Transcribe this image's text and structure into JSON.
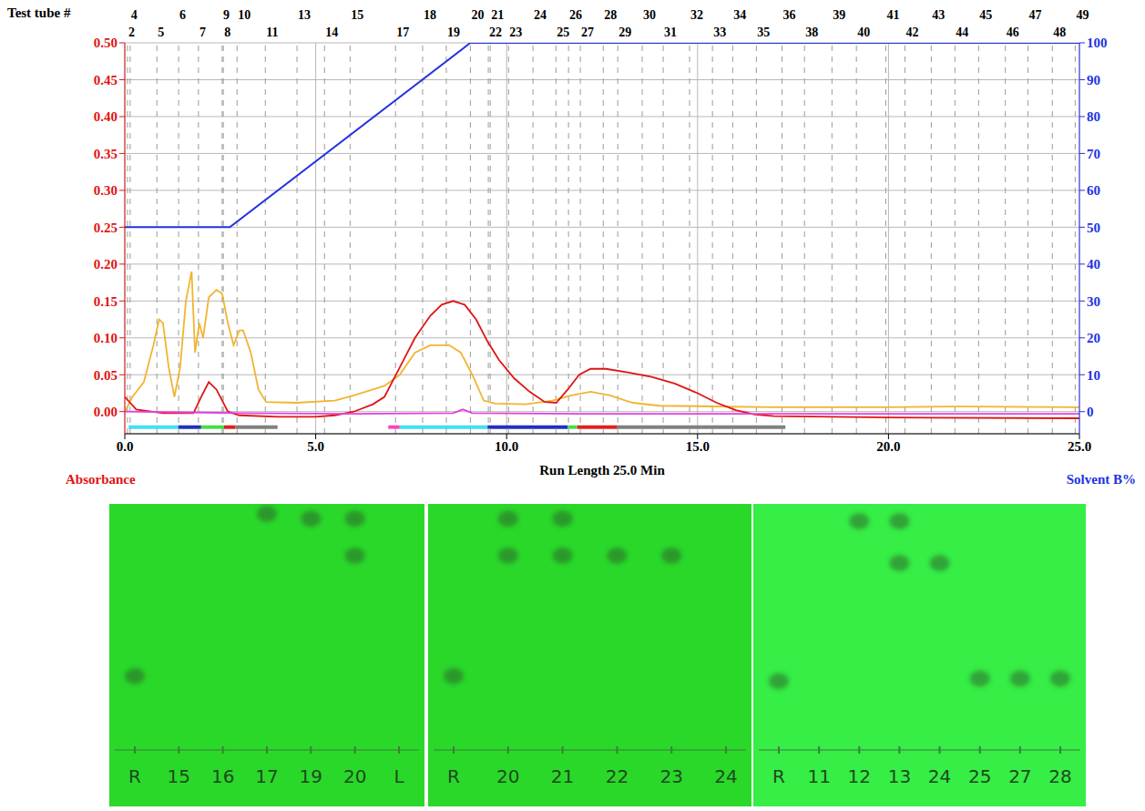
{
  "chart_data": {
    "type": "line",
    "x_label": "Run Length 25.0 Min",
    "y_label": "Absorbance",
    "y2_label": "Solvent B%",
    "xlim": [
      0,
      25
    ],
    "xticks": [
      {
        "value": 0,
        "label": "0.0"
      },
      {
        "value": 5,
        "label": "5.0"
      },
      {
        "value": 10,
        "label": "10.0"
      },
      {
        "value": 15,
        "label": "15.0"
      },
      {
        "value": 20,
        "label": "20.0"
      },
      {
        "value": 25,
        "label": "25.0"
      }
    ],
    "ylim": [
      -0.03,
      0.5
    ],
    "yticks": [
      {
        "value": 0,
        "label": "0.00"
      },
      {
        "value": 0.05,
        "label": "0.05"
      },
      {
        "value": 0.1,
        "label": "0.10"
      },
      {
        "value": 0.15,
        "label": "0.15"
      },
      {
        "value": 0.2,
        "label": "0.20"
      },
      {
        "value": 0.25,
        "label": "0.25"
      },
      {
        "value": 0.3,
        "label": "0.30"
      },
      {
        "value": 0.35,
        "label": "0.35"
      },
      {
        "value": 0.4,
        "label": "0.40"
      },
      {
        "value": 0.45,
        "label": "0.45"
      },
      {
        "value": 0.5,
        "label": "0.50"
      }
    ],
    "y2lim": [
      -6,
      100
    ],
    "y2ticks": [
      0,
      10,
      20,
      30,
      40,
      50,
      60,
      70,
      80,
      90,
      100
    ],
    "grid": true,
    "series": [
      {
        "color": "#f2b430",
        "x": [
          0,
          0.2,
          0.5,
          0.75,
          0.9,
          1.0,
          1.15,
          1.3,
          1.45,
          1.6,
          1.75,
          1.84,
          1.95,
          2.05,
          2.2,
          2.4,
          2.55,
          2.7,
          2.85,
          3.0,
          3.1,
          3.3,
          3.5,
          3.7,
          4.5,
          5.5,
          6.0,
          6.5,
          6.8,
          7.2,
          7.6,
          8.0,
          8.5,
          8.8,
          9.1,
          9.4,
          9.7,
          10.5,
          11.2,
          11.7,
          12.2,
          12.7,
          13.3,
          14,
          17,
          20,
          22,
          25
        ],
        "values": [
          0.0,
          0.02,
          0.04,
          0.09,
          0.125,
          0.12,
          0.06,
          0.02,
          0.06,
          0.15,
          0.19,
          0.08,
          0.12,
          0.1,
          0.155,
          0.165,
          0.16,
          0.12,
          0.09,
          0.11,
          0.11,
          0.08,
          0.03,
          0.013,
          0.012,
          0.015,
          0.022,
          0.03,
          0.035,
          0.05,
          0.08,
          0.09,
          0.09,
          0.08,
          0.05,
          0.015,
          0.011,
          0.01,
          0.015,
          0.022,
          0.027,
          0.022,
          0.012,
          0.008,
          0.006,
          0.006,
          0.007,
          0.006
        ]
      },
      {
        "color": "#e01414",
        "x": [
          0,
          0.3,
          1.0,
          1.8,
          2.0,
          2.2,
          2.4,
          2.7,
          3.0,
          4,
          5,
          5.5,
          6.0,
          6.5,
          6.8,
          7.0,
          7.3,
          7.6,
          8.0,
          8.3,
          8.6,
          8.9,
          9.2,
          9.5,
          9.8,
          10.2,
          10.6,
          11.0,
          11.3,
          11.6,
          11.9,
          12.2,
          12.6,
          13.2,
          13.8,
          14.4,
          15.0,
          15.5,
          16.0,
          16.5,
          17.0,
          20,
          25
        ],
        "values": [
          0.02,
          0.003,
          -0.002,
          -0.002,
          0.02,
          0.04,
          0.03,
          0.0,
          -0.005,
          -0.007,
          -0.007,
          -0.005,
          0.0,
          0.01,
          0.02,
          0.04,
          0.07,
          0.1,
          0.13,
          0.145,
          0.15,
          0.145,
          0.125,
          0.095,
          0.07,
          0.045,
          0.027,
          0.013,
          0.012,
          0.03,
          0.05,
          0.058,
          0.058,
          0.053,
          0.047,
          0.038,
          0.025,
          0.012,
          0.002,
          -0.004,
          -0.006,
          -0.008,
          -0.009
        ]
      },
      {
        "color": "#e040e0",
        "x": [
          0,
          3,
          6,
          8.6,
          8.85,
          9.1,
          12,
          25
        ],
        "values": [
          0.0,
          -0.002,
          -0.003,
          -0.002,
          0.003,
          -0.002,
          -0.003,
          -0.003
        ]
      },
      {
        "color": "#2233e0",
        "axis": "y2",
        "x": [
          0,
          2.75,
          9.05,
          25
        ],
        "values": [
          50,
          50,
          100,
          100
        ]
      }
    ],
    "test_tubes": {
      "title": "Test tube #",
      "ticks": [
        {
          "value": 0.07,
          "label": "2"
        },
        {
          "value": 0.14,
          "label": "4"
        },
        {
          "value": 0.84,
          "label": "5"
        },
        {
          "value": 1.41,
          "label": "6"
        },
        {
          "value": 1.93,
          "label": "7"
        },
        {
          "value": 2.55,
          "label": "9"
        },
        {
          "value": 2.58,
          "label": "8"
        },
        {
          "value": 2.94,
          "label": "10"
        },
        {
          "value": 3.68,
          "label": "11"
        },
        {
          "value": 4.51,
          "label": "13"
        },
        {
          "value": 5.23,
          "label": "14"
        },
        {
          "value": 5.9,
          "label": "15"
        },
        {
          "value": 7.09,
          "label": "17"
        },
        {
          "value": 7.8,
          "label": "18"
        },
        {
          "value": 8.42,
          "label": "19"
        },
        {
          "value": 9.05,
          "label": "20"
        },
        {
          "value": 9.52,
          "label": "22"
        },
        {
          "value": 9.57,
          "label": "21"
        },
        {
          "value": 10.05,
          "label": "23"
        },
        {
          "value": 10.69,
          "label": "24"
        },
        {
          "value": 11.29,
          "label": "25"
        },
        {
          "value": 11.62,
          "label": "26"
        },
        {
          "value": 11.93,
          "label": "27"
        },
        {
          "value": 12.53,
          "label": "28"
        },
        {
          "value": 12.91,
          "label": "29"
        },
        {
          "value": 13.55,
          "label": "30"
        },
        {
          "value": 14.1,
          "label": "31"
        },
        {
          "value": 14.79,
          "label": "32"
        },
        {
          "value": 15.39,
          "label": "33"
        },
        {
          "value": 15.92,
          "label": "34"
        },
        {
          "value": 16.54,
          "label": "35"
        },
        {
          "value": 17.21,
          "label": "36"
        },
        {
          "value": 17.8,
          "label": "38"
        },
        {
          "value": 18.52,
          "label": "39"
        },
        {
          "value": 19.16,
          "label": "40"
        },
        {
          "value": 19.93,
          "label": "41"
        },
        {
          "value": 20.43,
          "label": "42"
        },
        {
          "value": 21.12,
          "label": "43"
        },
        {
          "value": 21.74,
          "label": "44"
        },
        {
          "value": 22.36,
          "label": "45"
        },
        {
          "value": 23.06,
          "label": "46"
        },
        {
          "value": 23.65,
          "label": "47"
        },
        {
          "value": 24.29,
          "label": "48"
        },
        {
          "value": 24.89,
          "label": "49"
        }
      ]
    },
    "fraction_bars": [
      {
        "start": 0.1,
        "end": 1.4,
        "color": "#40e0f0"
      },
      {
        "start": 1.4,
        "end": 2.0,
        "color": "#2030c0"
      },
      {
        "start": 2.0,
        "end": 2.6,
        "color": "#40e040"
      },
      {
        "start": 2.6,
        "end": 2.9,
        "color": "#e02020"
      },
      {
        "start": 2.9,
        "end": 4.0,
        "color": "#808080"
      },
      {
        "start": 6.9,
        "end": 7.2,
        "color": "#ff40c0"
      },
      {
        "start": 7.2,
        "end": 9.5,
        "color": "#40e0f0"
      },
      {
        "start": 9.5,
        "end": 11.6,
        "color": "#2030c0"
      },
      {
        "start": 11.6,
        "end": 11.85,
        "color": "#40e040"
      },
      {
        "start": 11.85,
        "end": 12.9,
        "color": "#e02020"
      },
      {
        "start": 12.9,
        "end": 17.3,
        "color": "#808080"
      }
    ]
  },
  "plates": [
    {
      "lanes": [
        {
          "label": "R",
          "spots": [
            0.3
          ]
        },
        {
          "label": "15",
          "spots": []
        },
        {
          "label": "16",
          "spots": []
        },
        {
          "label": "17",
          "spots": [
            0.96
          ]
        },
        {
          "label": "19",
          "spots": [
            0.94
          ]
        },
        {
          "label": "20",
          "spots": [
            0.94,
            0.79
          ]
        },
        {
          "label": "L",
          "spots": []
        }
      ]
    },
    {
      "lanes": [
        {
          "label": "R",
          "spots": [
            0.3
          ]
        },
        {
          "label": "20",
          "spots": [
            0.94,
            0.79
          ]
        },
        {
          "label": "21",
          "spots": [
            0.94,
            0.79
          ]
        },
        {
          "label": "22",
          "spots": [
            0.79
          ]
        },
        {
          "label": "23",
          "spots": [
            0.79
          ]
        },
        {
          "label": "24",
          "spots": []
        }
      ]
    },
    {
      "lanes": [
        {
          "label": "R",
          "spots": [
            0.28
          ]
        },
        {
          "label": "11",
          "spots": []
        },
        {
          "label": "12",
          "spots": [
            0.93
          ]
        },
        {
          "label": "13",
          "spots": [
            0.93,
            0.76
          ]
        },
        {
          "label": "24",
          "spots": [
            0.76
          ]
        },
        {
          "label": "25",
          "spots": [
            0.29
          ]
        },
        {
          "label": "27",
          "spots": [
            0.29
          ]
        },
        {
          "label": "28",
          "spots": [
            0.29
          ]
        }
      ]
    }
  ]
}
